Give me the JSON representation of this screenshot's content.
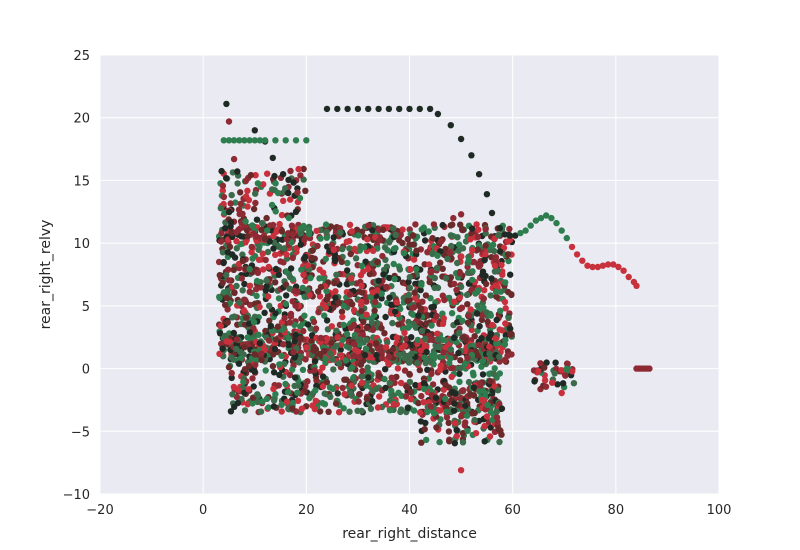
{
  "chart_data": {
    "type": "scatter",
    "title": "",
    "xlabel": "rear_right_distance",
    "ylabel": "rear_right_relvy",
    "xlim": [
      -20,
      100
    ],
    "ylim": [
      -10,
      25
    ],
    "xticks": [
      "−20",
      "0",
      "20",
      "40",
      "60",
      "80",
      "100"
    ],
    "yticks": [
      "−10",
      "−5",
      "0",
      "5",
      "10",
      "15",
      "20",
      "25"
    ],
    "grid": true,
    "background": "#eaeaf2",
    "palette": [
      "#2e7d4f",
      "#c8303c",
      "#8e2a33",
      "#1f2a24",
      "#6a2a2a",
      "#3b6b4a"
    ],
    "series": [
      {
        "color": "#1f2a24",
        "points": [
          [
            24,
            20.7
          ],
          [
            26,
            20.7
          ],
          [
            28,
            20.7
          ],
          [
            30,
            20.7
          ],
          [
            32,
            20.7
          ],
          [
            34,
            20.7
          ],
          [
            36,
            20.7
          ],
          [
            38,
            20.7
          ],
          [
            40,
            20.7
          ],
          [
            42,
            20.7
          ],
          [
            44,
            20.7
          ],
          [
            45.5,
            20.3
          ],
          [
            48,
            19.4
          ],
          [
            50,
            18.3
          ],
          [
            52,
            17.0
          ],
          [
            53.5,
            15.5
          ],
          [
            55,
            13.9
          ],
          [
            56,
            12.4
          ],
          [
            57.5,
            11.2
          ],
          [
            58.5,
            10.7
          ],
          [
            59.5,
            10.6
          ],
          [
            60.5,
            10.6
          ],
          [
            4.5,
            21.1
          ],
          [
            10,
            19.0
          ],
          [
            12,
            18.1
          ],
          [
            13.5,
            16.8
          ],
          [
            15.5,
            15.5
          ],
          [
            16.5,
            14.0
          ],
          [
            18,
            12.5
          ]
        ]
      },
      {
        "color": "#2e7d4f",
        "points": [
          [
            4,
            18.2
          ],
          [
            5,
            18.2
          ],
          [
            6,
            18.2
          ],
          [
            7,
            18.2
          ],
          [
            8,
            18.2
          ],
          [
            9,
            18.2
          ],
          [
            10,
            18.2
          ],
          [
            11,
            18.2
          ],
          [
            12,
            18.2
          ],
          [
            14,
            18.2
          ],
          [
            16,
            18.2
          ],
          [
            18,
            18.2
          ],
          [
            20,
            18.2
          ],
          [
            61.5,
            10.8
          ],
          [
            62.5,
            11.0
          ],
          [
            63.5,
            11.4
          ],
          [
            64.5,
            11.8
          ],
          [
            65.5,
            12.0
          ],
          [
            66.5,
            12.2
          ],
          [
            67.5,
            12.0
          ],
          [
            68.5,
            11.6
          ],
          [
            69.5,
            11.0
          ],
          [
            70.5,
            10.4
          ]
        ]
      },
      {
        "color": "#c8303c",
        "points": [
          [
            71.5,
            9.7
          ],
          [
            72.5,
            9.1
          ],
          [
            73.5,
            8.6
          ],
          [
            74.5,
            8.2
          ],
          [
            75.5,
            8.1
          ],
          [
            76.5,
            8.1
          ],
          [
            77.5,
            8.2
          ],
          [
            78.5,
            8.3
          ],
          [
            79.5,
            8.3
          ],
          [
            80.5,
            8.1
          ],
          [
            81.5,
            7.8
          ],
          [
            82.5,
            7.3
          ],
          [
            83.5,
            6.9
          ],
          [
            84,
            6.6
          ],
          [
            50,
            -8.1
          ],
          [
            65,
            -0.2
          ]
        ]
      },
      {
        "color": "#8e2a33",
        "points": [
          [
            84,
            0
          ],
          [
            84.5,
            0
          ],
          [
            85,
            0
          ],
          [
            85.5,
            0
          ],
          [
            86,
            0
          ],
          [
            86.5,
            0
          ],
          [
            5,
            19.7
          ],
          [
            6,
            16.7
          ],
          [
            50,
            12.3
          ],
          [
            48.5,
            12.0
          ]
        ]
      }
    ],
    "clusters": [
      {
        "xmin": 3,
        "xmax": 60,
        "ymin": 0.5,
        "ymax": 11.5,
        "count": 1500
      },
      {
        "xmin": 5,
        "xmax": 58,
        "ymin": -3.5,
        "ymax": 2.5,
        "count": 700
      },
      {
        "xmin": 3,
        "xmax": 20,
        "ymin": 10,
        "ymax": 16,
        "count": 140
      },
      {
        "xmin": 42,
        "xmax": 58,
        "ymin": -6,
        "ymax": -1,
        "count": 160
      },
      {
        "xmin": 64,
        "xmax": 72,
        "ymin": -2,
        "ymax": 0.5,
        "count": 40
      }
    ]
  }
}
